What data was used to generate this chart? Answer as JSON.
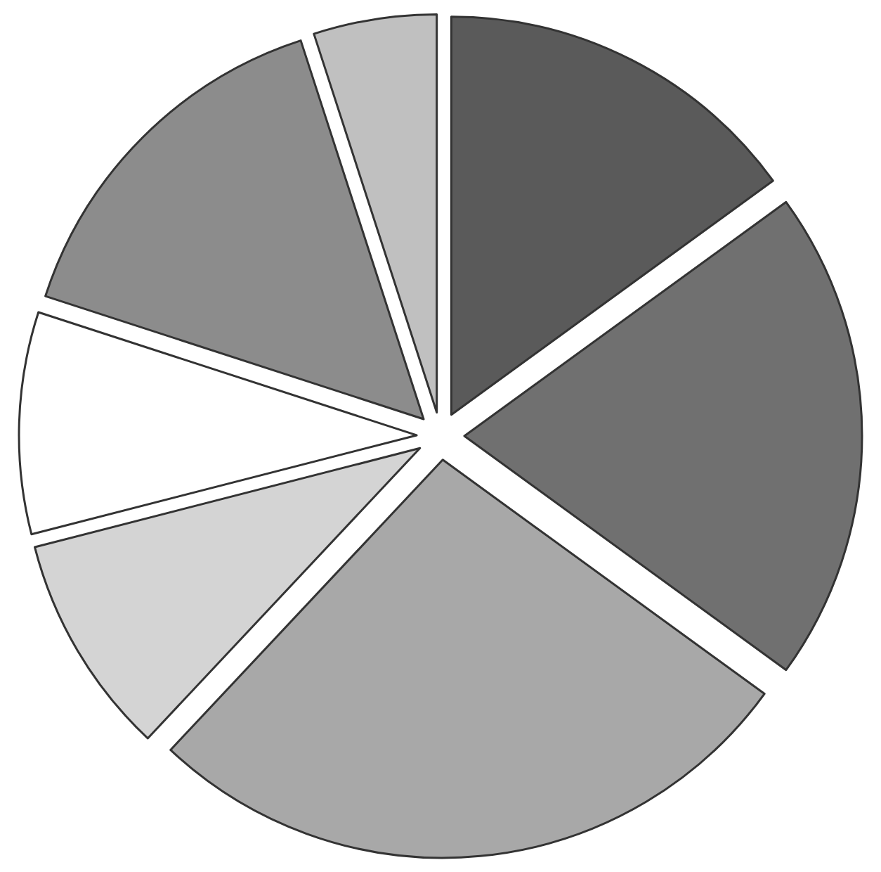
{
  "chart_data": {
    "type": "pie",
    "categories": [
      null,
      null,
      null,
      null,
      null,
      null,
      null
    ],
    "values": [
      15,
      20,
      27,
      9,
      9,
      15,
      5
    ],
    "colors": [
      "#5a5a5a",
      "#707070",
      "#a8a8a8",
      "#d4d4d4",
      "#ffffff",
      "#8c8c8c",
      "#c0c0c0"
    ],
    "legend": false
  }
}
